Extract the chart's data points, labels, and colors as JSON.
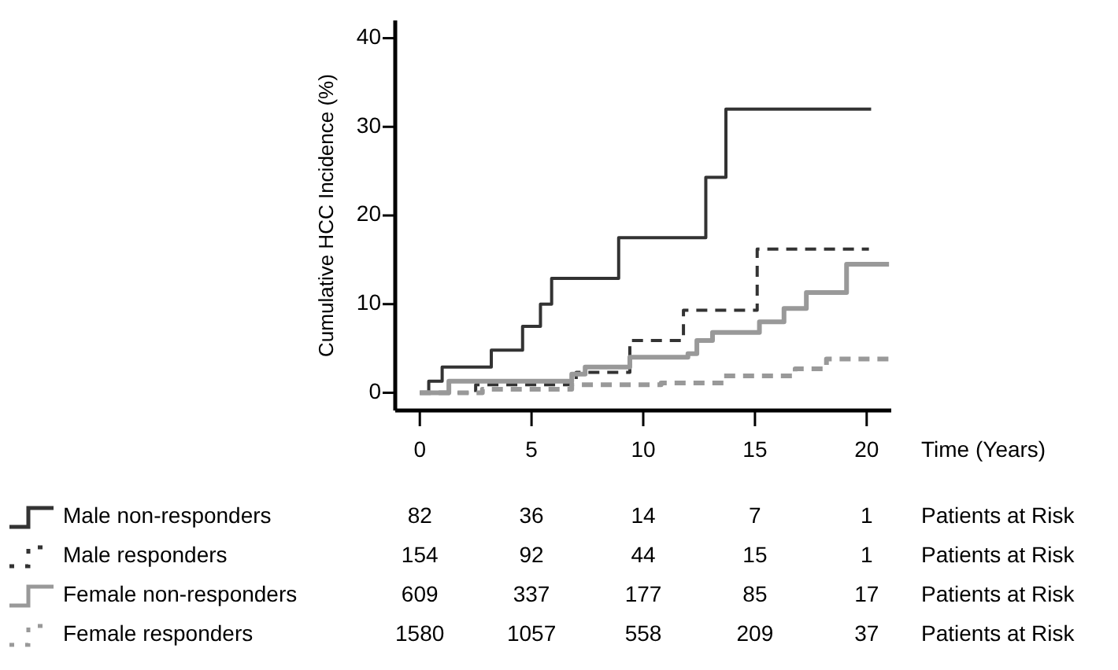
{
  "chart_data": {
    "type": "step",
    "xlabel": "Time (Years)",
    "ylabel": "Cumulative HCC Incidence (%)",
    "xlim": [
      -1.1,
      21.1
    ],
    "ylim": [
      -2,
      42
    ],
    "xticks": [
      0,
      5,
      10,
      15,
      20
    ],
    "yticks": [
      0,
      10,
      20,
      30,
      40
    ],
    "grid": false,
    "legend": "bottom left",
    "series": [
      {
        "name": "Male non-responders",
        "color": "#333333",
        "line_style": "solid",
        "x": [
          0,
          0.4,
          1.0,
          3.2,
          4.6,
          5.4,
          5.9,
          8.9,
          12.8,
          13.7,
          20.2
        ],
        "values": [
          0,
          1.3,
          2.9,
          4.8,
          7.5,
          10.0,
          12.9,
          17.5,
          24.3,
          32.0,
          32.0
        ]
      },
      {
        "name": "Male responders",
        "color": "#333333",
        "line_style": "dashed",
        "x": [
          0,
          2.5,
          7.0,
          9.4,
          11.8,
          15.1,
          20.1
        ],
        "values": [
          0,
          0.9,
          2.3,
          5.9,
          9.3,
          16.2,
          16.2
        ]
      },
      {
        "name": "Female non-responders",
        "color": "#999999",
        "line_style": "solid",
        "x": [
          0,
          1.3,
          6.8,
          7.4,
          9.4,
          12.0,
          12.4,
          13.1,
          15.2,
          16.3,
          17.3,
          19.1,
          21.0
        ],
        "values": [
          0,
          1.3,
          2.1,
          2.9,
          4.0,
          4.4,
          5.9,
          6.8,
          8.0,
          9.5,
          11.3,
          14.5,
          14.5
        ]
      },
      {
        "name": "Female responders",
        "color": "#999999",
        "line_style": "dashed",
        "x": [
          0,
          2.8,
          6.8,
          10.8,
          13.6,
          16.8,
          18.2,
          21.0
        ],
        "values": [
          0,
          0.4,
          0.9,
          1.1,
          1.9,
          2.7,
          3.8,
          3.8
        ]
      }
    ],
    "annotations": [
      "82",
      "36",
      "14",
      "7",
      "1",
      "Patients at Risk",
      "154",
      "92",
      "44",
      "15",
      "1",
      "Patients at Risk",
      "609",
      "337",
      "177",
      "85",
      "17",
      "Patients at Risk",
      "1580",
      "1057",
      "558",
      "209",
      "37",
      "Patients at Risk"
    ]
  }
}
